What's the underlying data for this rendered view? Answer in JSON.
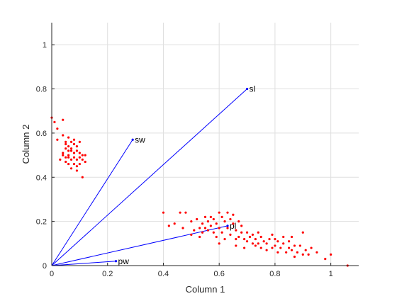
{
  "chart_data": {
    "type": "scatter",
    "title": "",
    "xlabel": "Column 1",
    "ylabel": "Column 2",
    "xlim": [
      0,
      1.1
    ],
    "ylim": [
      0,
      1.1
    ],
    "xticks": [
      0,
      0.2,
      0.4,
      0.6,
      0.8,
      1
    ],
    "yticks": [
      0,
      0.2,
      0.4,
      0.6,
      0.8,
      1
    ],
    "xtick_labels": [
      "0",
      "0.2",
      "0.4",
      "0.6",
      "0.8",
      "1"
    ],
    "ytick_labels": [
      "0",
      "0.2",
      "0.4",
      "0.6",
      "0.8",
      "1"
    ],
    "grid": true,
    "colors": {
      "vectors": "#0000ff",
      "points": "#ff0000",
      "axes": "#262626",
      "grid": "#dfdfdf"
    },
    "vectors": [
      {
        "label": "sl",
        "x": 0.7,
        "y": 0.8
      },
      {
        "label": "sw",
        "x": 0.29,
        "y": 0.57
      },
      {
        "label": "pl",
        "x": 0.63,
        "y": 0.18
      },
      {
        "label": "pw",
        "x": 0.23,
        "y": 0.02
      }
    ],
    "points": [
      [
        0.0,
        0.67
      ],
      [
        0.01,
        0.65
      ],
      [
        0.02,
        0.62
      ],
      [
        0.04,
        0.66
      ],
      [
        0.02,
        0.57
      ],
      [
        0.04,
        0.59
      ],
      [
        0.05,
        0.56
      ],
      [
        0.05,
        0.55
      ],
      [
        0.06,
        0.58
      ],
      [
        0.06,
        0.54
      ],
      [
        0.07,
        0.56
      ],
      [
        0.08,
        0.55
      ],
      [
        0.09,
        0.54
      ],
      [
        0.05,
        0.53
      ],
      [
        0.06,
        0.52
      ],
      [
        0.07,
        0.52
      ],
      [
        0.08,
        0.51
      ],
      [
        0.09,
        0.52
      ],
      [
        0.1,
        0.51
      ],
      [
        0.11,
        0.5
      ],
      [
        0.04,
        0.5
      ],
      [
        0.05,
        0.49
      ],
      [
        0.06,
        0.49
      ],
      [
        0.07,
        0.48
      ],
      [
        0.08,
        0.49
      ],
      [
        0.09,
        0.48
      ],
      [
        0.1,
        0.49
      ],
      [
        0.11,
        0.48
      ],
      [
        0.12,
        0.47
      ],
      [
        0.05,
        0.47
      ],
      [
        0.06,
        0.46
      ],
      [
        0.08,
        0.46
      ],
      [
        0.09,
        0.45
      ],
      [
        0.1,
        0.46
      ],
      [
        0.07,
        0.44
      ],
      [
        0.09,
        0.43
      ],
      [
        0.04,
        0.51
      ],
      [
        0.08,
        0.57
      ],
      [
        0.12,
        0.5
      ],
      [
        0.11,
        0.4
      ],
      [
        0.03,
        0.48
      ],
      [
        0.1,
        0.56
      ],
      [
        0.06,
        0.5
      ],
      [
        0.07,
        0.53
      ],
      [
        0.4,
        0.24
      ],
      [
        0.44,
        0.19
      ],
      [
        0.46,
        0.24
      ],
      [
        0.48,
        0.24
      ],
      [
        0.47,
        0.17
      ],
      [
        0.5,
        0.2
      ],
      [
        0.5,
        0.14
      ],
      [
        0.51,
        0.16
      ],
      [
        0.52,
        0.21
      ],
      [
        0.53,
        0.17
      ],
      [
        0.54,
        0.19
      ],
      [
        0.54,
        0.15
      ],
      [
        0.55,
        0.22
      ],
      [
        0.55,
        0.17
      ],
      [
        0.56,
        0.2
      ],
      [
        0.56,
        0.16
      ],
      [
        0.57,
        0.22
      ],
      [
        0.57,
        0.18
      ],
      [
        0.58,
        0.15
      ],
      [
        0.58,
        0.21
      ],
      [
        0.59,
        0.13
      ],
      [
        0.59,
        0.19
      ],
      [
        0.6,
        0.24
      ],
      [
        0.6,
        0.17
      ],
      [
        0.61,
        0.22
      ],
      [
        0.61,
        0.15
      ],
      [
        0.62,
        0.2
      ],
      [
        0.62,
        0.12
      ],
      [
        0.63,
        0.24
      ],
      [
        0.63,
        0.17
      ],
      [
        0.64,
        0.21
      ],
      [
        0.64,
        0.14
      ],
      [
        0.65,
        0.19
      ],
      [
        0.65,
        0.23
      ],
      [
        0.66,
        0.16
      ],
      [
        0.66,
        0.12
      ],
      [
        0.67,
        0.2
      ],
      [
        0.67,
        0.13
      ],
      [
        0.68,
        0.15
      ],
      [
        0.68,
        0.18
      ],
      [
        0.69,
        0.12
      ],
      [
        0.7,
        0.15
      ],
      [
        0.7,
        0.11
      ],
      [
        0.71,
        0.13
      ],
      [
        0.72,
        0.14
      ],
      [
        0.72,
        0.1
      ],
      [
        0.73,
        0.09
      ],
      [
        0.73,
        0.12
      ],
      [
        0.74,
        0.1
      ],
      [
        0.75,
        0.08
      ],
      [
        0.75,
        0.13
      ],
      [
        0.76,
        0.11
      ],
      [
        0.77,
        0.07
      ],
      [
        0.77,
        0.1
      ],
      [
        0.78,
        0.12
      ],
      [
        0.79,
        0.08
      ],
      [
        0.79,
        0.14
      ],
      [
        0.8,
        0.09
      ],
      [
        0.81,
        0.11
      ],
      [
        0.81,
        0.06
      ],
      [
        0.82,
        0.08
      ],
      [
        0.83,
        0.1
      ],
      [
        0.83,
        0.13
      ],
      [
        0.84,
        0.06
      ],
      [
        0.85,
        0.08
      ],
      [
        0.85,
        0.11
      ],
      [
        0.86,
        0.07
      ],
      [
        0.87,
        0.09
      ],
      [
        0.87,
        0.04
      ],
      [
        0.88,
        0.06
      ],
      [
        0.89,
        0.09
      ],
      [
        0.9,
        0.05
      ],
      [
        0.9,
        0.15
      ],
      [
        0.91,
        0.07
      ],
      [
        0.92,
        0.05
      ],
      [
        0.93,
        0.08
      ],
      [
        0.95,
        0.06
      ],
      [
        0.98,
        0.03
      ],
      [
        1.0,
        0.05
      ],
      [
        1.06,
        0.0
      ],
      [
        0.42,
        0.18
      ],
      [
        0.53,
        0.13
      ],
      [
        0.66,
        0.09
      ],
      [
        0.69,
        0.08
      ],
      [
        0.74,
        0.15
      ],
      [
        0.8,
        0.12
      ],
      [
        0.86,
        0.13
      ],
      [
        0.6,
        0.1
      ]
    ]
  }
}
